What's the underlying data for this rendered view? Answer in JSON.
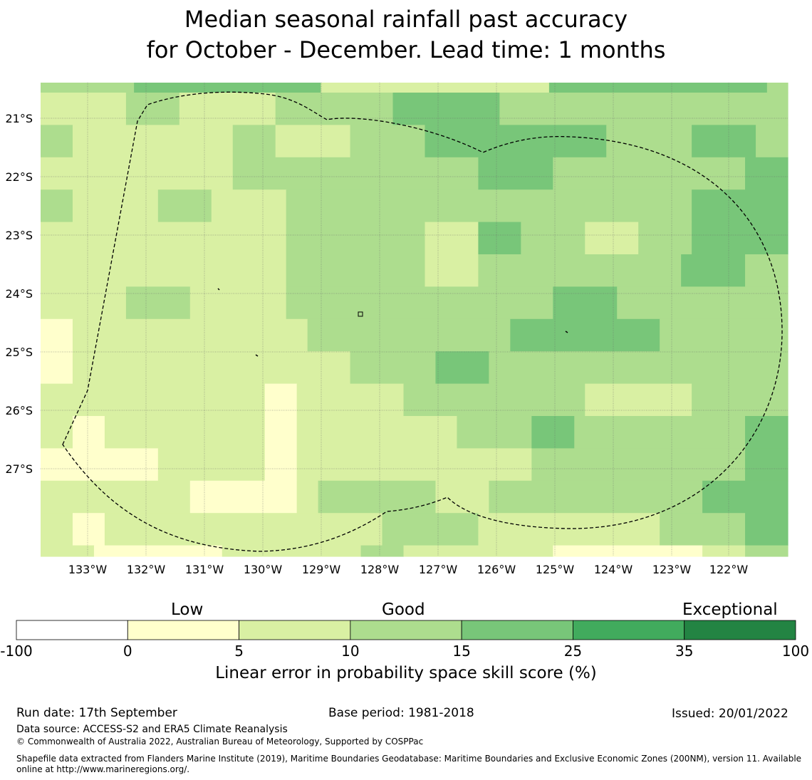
{
  "title": {
    "line1": "Median seasonal rainfall past accuracy",
    "line2": "for October - December. Lead time: 1 months"
  },
  "map": {
    "lon_labels": [
      "133°W",
      "132°W",
      "131°W",
      "130°W",
      "129°W",
      "128°W",
      "127°W",
      "126°W",
      "125°W",
      "124°W",
      "123°W",
      "122°W"
    ],
    "lat_labels": [
      "21°S",
      "22°S",
      "23°S",
      "24°S",
      "25°S",
      "26°S",
      "27°S"
    ],
    "grid_rows": [
      "AAAAAAAAABBBBBBBBBBBBBBBBBBCCCCCCCCCCCCCCCCCCCCCCBBBBBBBBBBBBBBBBBBBBBAA",
      "1111111122222111111111222222222223333333333222222222222222222222222222",
      "2221111111111111112222111111122222223333333333333333322222222333333222",
      "1111111111111111112222222222222222222222233333332222222222222222223333",
      "2221111111122222111111122222222222222222222222222222222222222333333333",
      "1111111111111111111111122222222222221111133332222221111122222333333333",
      "1111111111111111111111122222222222221111122222222222222222223333332222",
      "1111111122222211111111122222222222222222222222223333332222222222222222",
      "0001111111111111111111111222222222222222222233333333333333222222222222",
      "0001111111111111111111111111122222222333332222222222222222222222222222",
      "1111111111111111111110001111111111222222222222222221111111111222222222",
      "1110001111111111111110001111111111111112222222333322222222222222223333",
      "0000000000011111111110001111111111111111111111222222222222222222223333",
      "1111111111111100000000001122222222222111112222222222222222222233333333",
      "1110001111111111111111111111111122222222211111111111111111222222223333",
      "1111100000000000011111111111112222111111111111110000000000000011112222",
      "0001111111111111111111111111111111111111111111111111111111111111000011"
    ],
    "grid_row_fractions": [
      0.3,
      0.7
    ],
    "palette": {
      "0": "#ffffcc",
      "1": "#d9f0a3",
      "2": "#addd8e",
      "3": "#78c679",
      "A": "#addd8e",
      "B": "#78c679",
      "C": "#d9f0a3"
    }
  },
  "colorbar": {
    "ticks": [
      "-100",
      "0",
      "5",
      "10",
      "15",
      "25",
      "35",
      "100"
    ],
    "colors": [
      "#ffffff",
      "#ffffcc",
      "#d9f0a3",
      "#addd8e",
      "#78c679",
      "#41ab5d",
      "#238443"
    ],
    "categories": {
      "low": "Low",
      "good": "Good",
      "exceptional": "Exceptional"
    },
    "label": "Linear error in probability space skill score (%)"
  },
  "footer": {
    "run_date": "Run date: 17th September",
    "base_period": "Base period: 1981-2018",
    "issued": "Issued: 20/01/2022",
    "data_source": "Data source: ACCESS-S2 and ERA5 Climate Reanalysis",
    "copyright": "© Commonwealth of Australia 2022, Australian Bureau of Meteorology, Supported by COSPPac",
    "shapefile_line1": "Shapefile data extracted from Flanders Marine Institute (2019), Maritime Boundaries Geodatabase: Maritime Boundaries and Exclusive Economic Zones (200NM), version 11. Available",
    "shapefile_line2": "online at http://www.marineregions.org/."
  }
}
